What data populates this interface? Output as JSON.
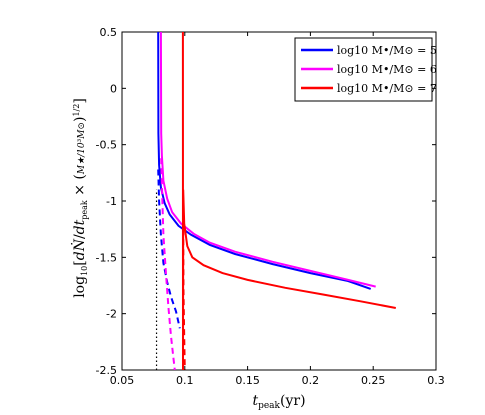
{
  "chart_data": {
    "type": "line",
    "xlabel": "t_peak(yr)",
    "ylabel": "log10[dṄ/dt_peak × (M★/10³M⊙)^1/2]",
    "xlim": [
      0.05,
      0.3
    ],
    "ylim": [
      -2.5,
      0.5
    ],
    "x_ticks": [
      "0.05",
      "0.1",
      "0.15",
      "0.2",
      "0.25",
      "0.3"
    ],
    "y_ticks": [
      "0.5",
      "0",
      "-0.5",
      "-1",
      "-1.5",
      "-2",
      "-2.5"
    ],
    "grid": false,
    "legend": "top-right",
    "series": [
      {
        "name": "log10 M•/M⊙ = 5",
        "color": "#0000ff",
        "solid": [
          [
            0.0788,
            0.5
          ],
          [
            0.079,
            -0.4
          ],
          [
            0.0795,
            -0.68
          ],
          [
            0.081,
            -0.88
          ],
          [
            0.084,
            -1.02
          ],
          [
            0.088,
            -1.12
          ],
          [
            0.095,
            -1.22
          ],
          [
            0.105,
            -1.3
          ],
          [
            0.12,
            -1.39
          ],
          [
            0.14,
            -1.47
          ],
          [
            0.17,
            -1.56
          ],
          [
            0.2,
            -1.64
          ],
          [
            0.23,
            -1.71
          ],
          [
            0.248,
            -1.78
          ]
        ],
        "dashed": [
          [
            0.0788,
            -0.72
          ],
          [
            0.0795,
            -1.0
          ],
          [
            0.081,
            -1.3
          ],
          [
            0.083,
            -1.55
          ],
          [
            0.086,
            -1.72
          ],
          [
            0.089,
            -1.85
          ],
          [
            0.093,
            -1.98
          ],
          [
            0.096,
            -2.13
          ]
        ]
      },
      {
        "name": "log10 M•/M⊙ = 6",
        "color": "#ff00ff",
        "solid": [
          [
            0.081,
            0.5
          ],
          [
            0.0812,
            -0.4
          ],
          [
            0.0818,
            -0.6
          ],
          [
            0.083,
            -0.82
          ],
          [
            0.086,
            -0.98
          ],
          [
            0.09,
            -1.1
          ],
          [
            0.097,
            -1.2
          ],
          [
            0.107,
            -1.29
          ],
          [
            0.12,
            -1.37
          ],
          [
            0.14,
            -1.45
          ],
          [
            0.17,
            -1.54
          ],
          [
            0.2,
            -1.62
          ],
          [
            0.23,
            -1.7
          ],
          [
            0.252,
            -1.76
          ]
        ],
        "dashed": [
          [
            0.0812,
            -0.62
          ],
          [
            0.082,
            -0.95
          ],
          [
            0.083,
            -1.3
          ],
          [
            0.085,
            -1.65
          ],
          [
            0.087,
            -1.95
          ],
          [
            0.089,
            -2.2
          ],
          [
            0.091,
            -2.4
          ],
          [
            0.092,
            -2.5
          ]
        ]
      },
      {
        "name": "log10 M•/M⊙ = 7",
        "color": "#ff0000",
        "solid": [
          [
            0.0985,
            0.5
          ],
          [
            0.0986,
            -2.5
          ],
          [
            0.0987,
            -0.9
          ],
          [
            0.0995,
            -1.2
          ],
          [
            0.102,
            -1.4
          ],
          [
            0.106,
            -1.5
          ],
          [
            0.115,
            -1.57
          ],
          [
            0.13,
            -1.64
          ],
          [
            0.15,
            -1.7
          ],
          [
            0.18,
            -1.77
          ],
          [
            0.21,
            -1.83
          ],
          [
            0.24,
            -1.89
          ],
          [
            0.268,
            -1.95
          ]
        ],
        "dashed": [
          [
            0.0987,
            -1.25
          ],
          [
            0.099,
            -1.8
          ],
          [
            0.0995,
            -2.2
          ],
          [
            0.1,
            -2.5
          ]
        ]
      }
    ],
    "reference_line": {
      "x": 0.0775,
      "style": "dotted",
      "color": "#000000",
      "y_from": -2.5,
      "y_to": -0.9
    }
  }
}
